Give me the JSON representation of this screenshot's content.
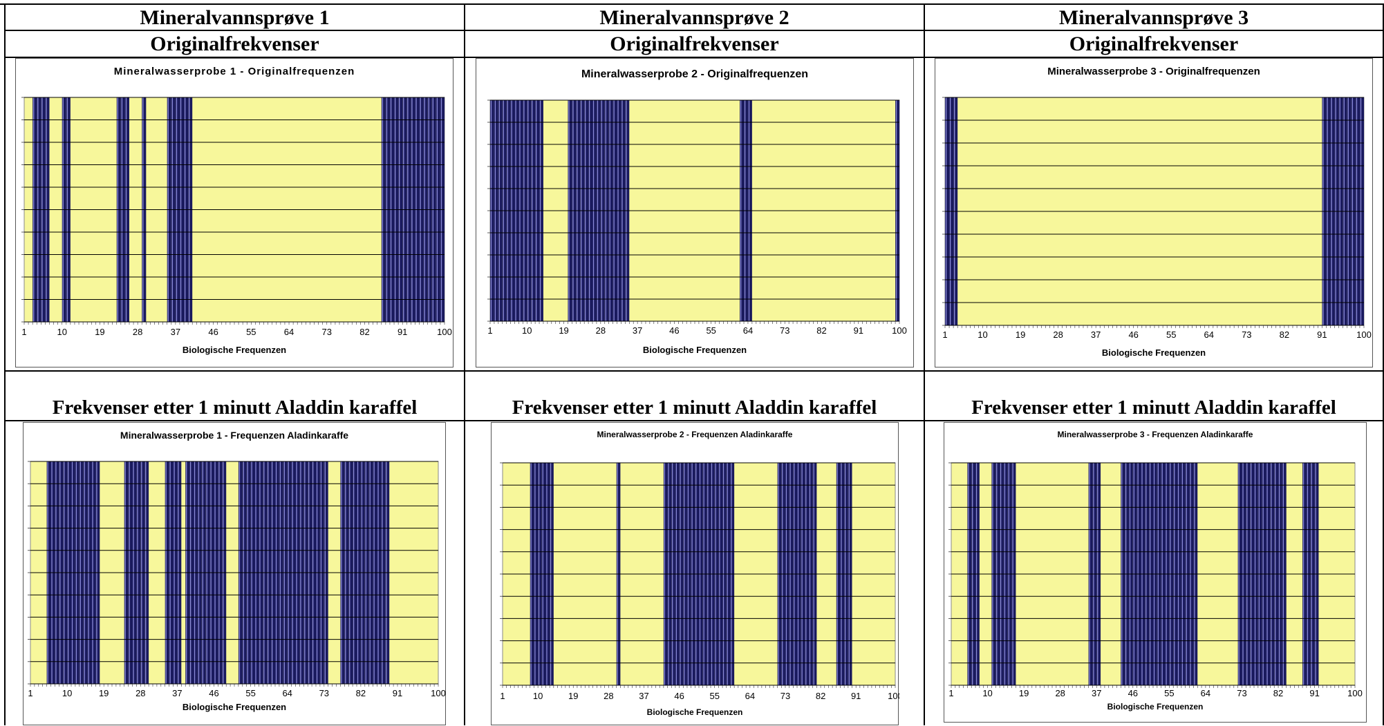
{
  "headers": {
    "sample1": "Mineralvannsprøve 1",
    "sample2": "Mineralvannsprøve 2",
    "sample3": "Mineralvannsprøve 3",
    "original1": "Originalfrekvenser",
    "original2": "Originalfrekvenser",
    "original3": "Originalfrekvenser",
    "after1": "Frekvenser etter 1 minutt Aladdin karaffel",
    "after2": "Frekvenser etter 1 minutt Aladdin karaffel",
    "after3": "Frekvenser etter 1 minutt Aladdin karaffel"
  },
  "colors": {
    "plot_background": "#f7f79b",
    "bar_dark": "#1a1a5e",
    "bar_light": "#8a8ad8",
    "gridline": "#000000"
  },
  "chart_data": [
    {
      "type": "bar",
      "title": "Mineralwasserprobe 1 - Originalfrequenzen",
      "xlabel": "Biologische Frequenzen",
      "ylabel": "",
      "x_range": [
        1,
        100
      ],
      "x_ticks": [
        "1",
        "10",
        "19",
        "28",
        "37",
        "46",
        "55",
        "64",
        "73",
        "82",
        "91",
        "100"
      ],
      "y_gridlines": 10,
      "grid": true,
      "active_frequencies": [
        3,
        4,
        5,
        6,
        10,
        11,
        23,
        24,
        25,
        29,
        35,
        36,
        37,
        38,
        39,
        40,
        86,
        87,
        88,
        89,
        90,
        91,
        92,
        93,
        94,
        95,
        96,
        97,
        98,
        99,
        100
      ]
    },
    {
      "type": "bar",
      "title": "Mineralwasserprobe 2 - Originalfrequenzen",
      "xlabel": "Biologische Frequenzen",
      "ylabel": "",
      "x_range": [
        1,
        100
      ],
      "x_ticks": [
        "1",
        "10",
        "19",
        "28",
        "37",
        "46",
        "55",
        "64",
        "73",
        "82",
        "91",
        "100"
      ],
      "y_gridlines": 10,
      "grid": true,
      "active_frequencies": [
        1,
        2,
        3,
        4,
        5,
        6,
        7,
        8,
        9,
        10,
        11,
        12,
        13,
        20,
        21,
        22,
        23,
        24,
        25,
        26,
        27,
        28,
        29,
        30,
        31,
        32,
        33,
        34,
        62,
        63,
        64,
        100
      ]
    },
    {
      "type": "bar",
      "title": "Mineralwasserprobe 3 - Originalfrequenzen",
      "xlabel": "Biologische Frequenzen",
      "ylabel": "",
      "x_range": [
        1,
        100
      ],
      "x_ticks": [
        "1",
        "10",
        "19",
        "28",
        "37",
        "46",
        "55",
        "64",
        "73",
        "82",
        "91",
        "100"
      ],
      "y_gridlines": 10,
      "grid": true,
      "active_frequencies": [
        1,
        2,
        3,
        91,
        92,
        93,
        94,
        95,
        96,
        97,
        98,
        99,
        100
      ]
    },
    {
      "type": "bar",
      "title": "Mineralwasserprobe 1 - Frequenzen Aladinkaraffe",
      "xlabel": "Biologische Frequenzen",
      "ylabel": "",
      "x_range": [
        1,
        100
      ],
      "x_ticks": [
        "1",
        "10",
        "19",
        "28",
        "37",
        "46",
        "55",
        "64",
        "73",
        "82",
        "91",
        "100"
      ],
      "y_gridlines": 10,
      "grid": true,
      "active_frequencies": [
        5,
        6,
        7,
        8,
        9,
        10,
        11,
        12,
        13,
        14,
        15,
        16,
        17,
        24,
        25,
        26,
        27,
        28,
        29,
        34,
        35,
        36,
        37,
        39,
        40,
        41,
        42,
        43,
        44,
        45,
        46,
        47,
        48,
        52,
        53,
        54,
        55,
        56,
        57,
        58,
        59,
        60,
        61,
        62,
        63,
        64,
        65,
        66,
        67,
        68,
        69,
        70,
        71,
        72,
        73,
        77,
        78,
        79,
        80,
        81,
        82,
        83,
        84,
        85,
        86,
        87,
        88
      ]
    },
    {
      "type": "bar",
      "title": "Mineralwasserprobe 2 - Frequenzen Aladinkaraffe",
      "xlabel": "Biologische Frequenzen",
      "ylabel": "",
      "x_range": [
        1,
        100
      ],
      "x_ticks": [
        "1",
        "10",
        "19",
        "28",
        "37",
        "46",
        "55",
        "64",
        "73",
        "82",
        "91",
        "100"
      ],
      "y_gridlines": 10,
      "grid": true,
      "active_frequencies": [
        8,
        9,
        10,
        11,
        12,
        13,
        30,
        42,
        43,
        44,
        45,
        46,
        47,
        48,
        49,
        50,
        51,
        52,
        53,
        54,
        55,
        56,
        57,
        58,
        59,
        71,
        72,
        73,
        74,
        75,
        76,
        77,
        78,
        79,
        80,
        86,
        87,
        88,
        89
      ]
    },
    {
      "type": "bar",
      "title": "Mineralwasserprobe 3 - Frequenzen Aladinkaraffe",
      "xlabel": "Biologische Frequenzen",
      "ylabel": "",
      "x_range": [
        1,
        100
      ],
      "x_ticks": [
        "1",
        "10",
        "19",
        "28",
        "37",
        "46",
        "55",
        "64",
        "73",
        "82",
        "91",
        "100"
      ],
      "y_gridlines": 10,
      "grid": true,
      "active_frequencies": [
        5,
        6,
        7,
        11,
        12,
        13,
        14,
        15,
        16,
        35,
        36,
        37,
        43,
        44,
        45,
        46,
        47,
        48,
        49,
        50,
        51,
        52,
        53,
        54,
        55,
        56,
        57,
        58,
        59,
        60,
        61,
        72,
        73,
        74,
        75,
        76,
        77,
        78,
        79,
        80,
        81,
        82,
        83,
        88,
        89,
        90,
        91
      ]
    }
  ]
}
